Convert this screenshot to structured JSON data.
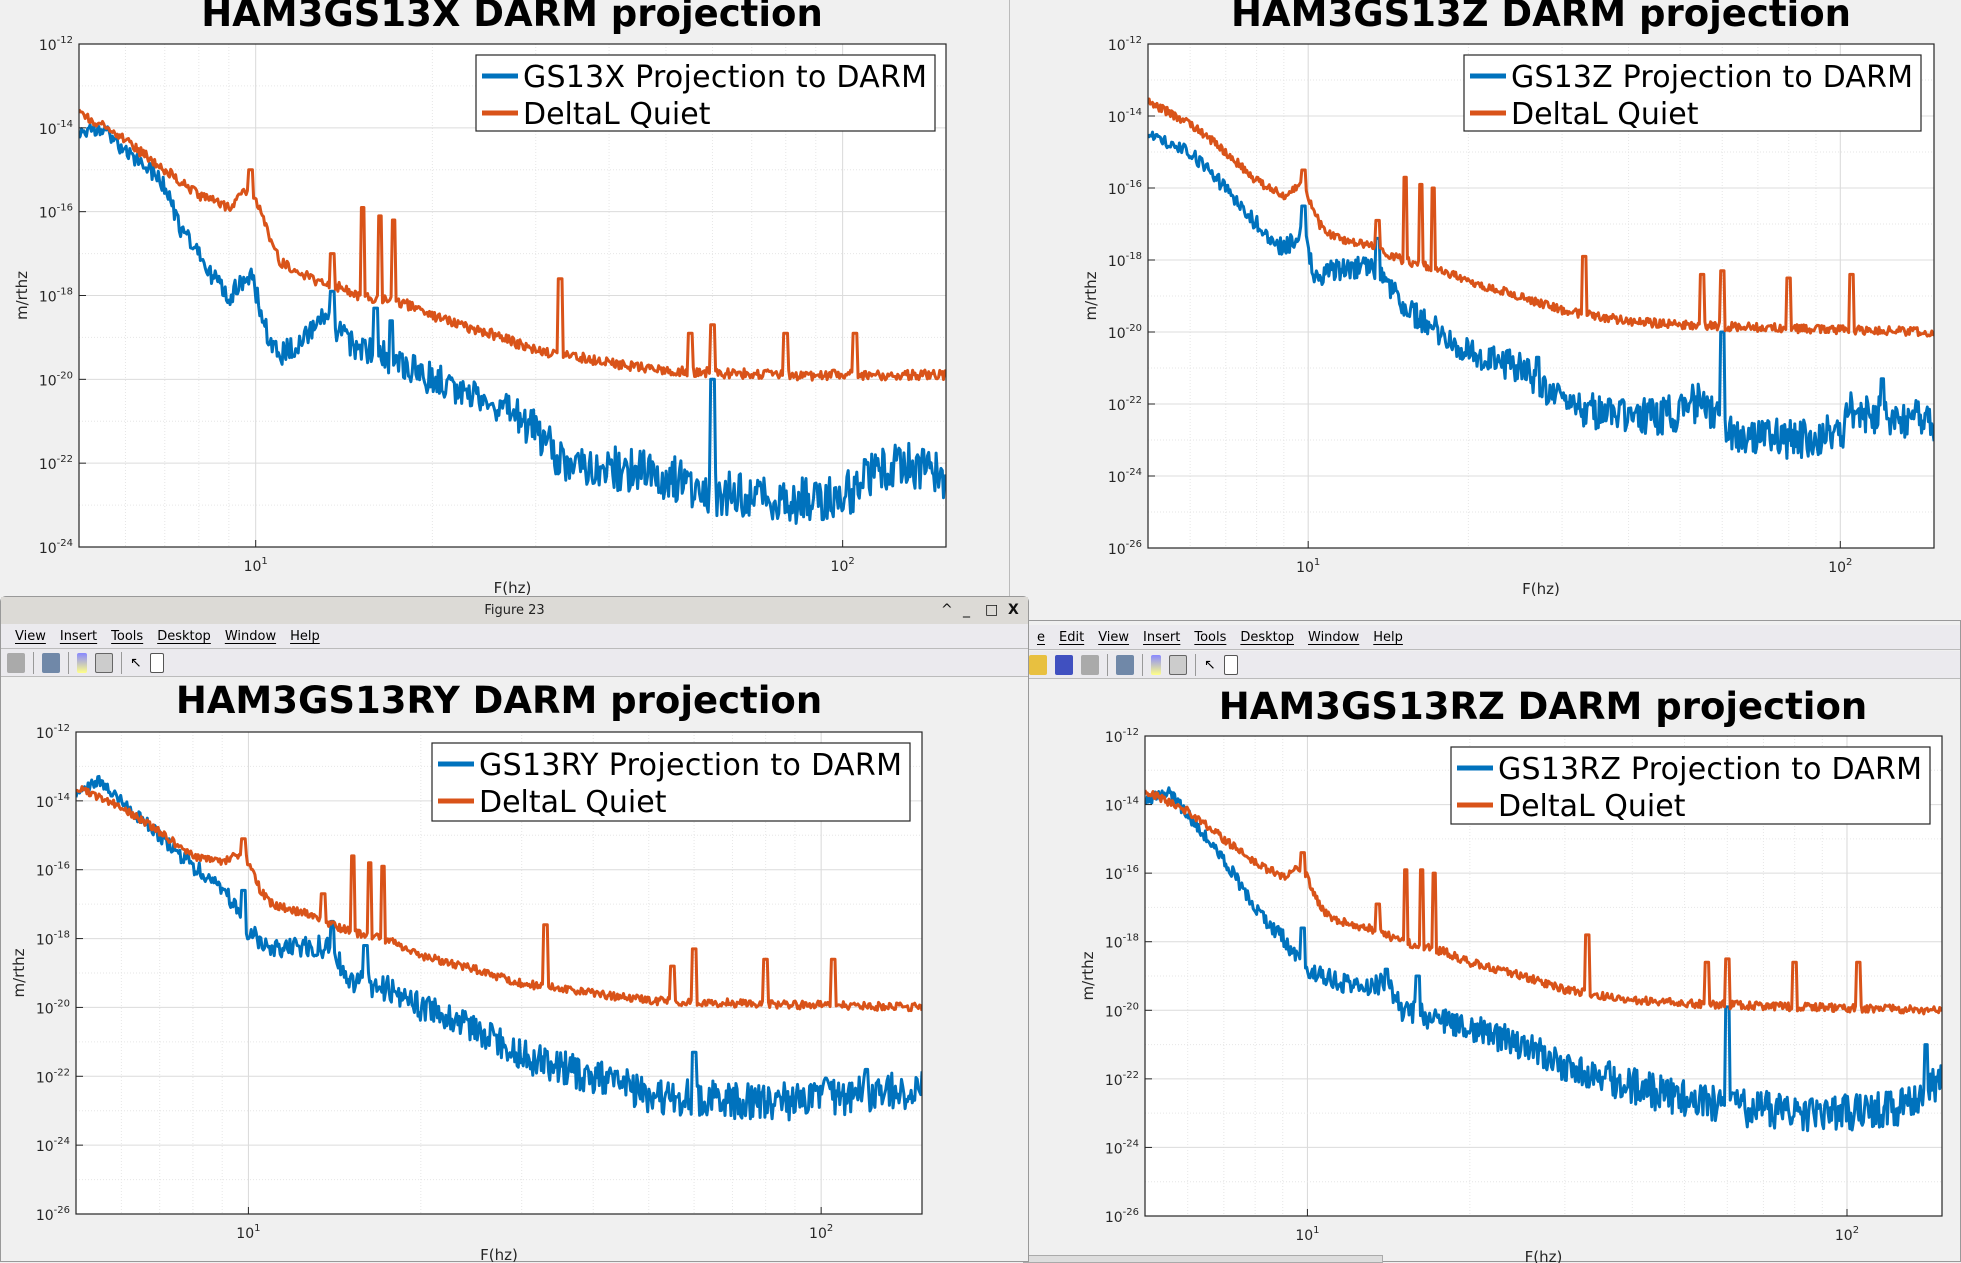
{
  "windows": {
    "fig23": {
      "title": "Figure 23",
      "menu": [
        "View",
        "Insert",
        "Tools",
        "Desktop",
        "Window",
        "Help"
      ],
      "controls": [
        "^",
        "_",
        "□",
        "X"
      ]
    },
    "right": {
      "menu": [
        "e",
        "Edit",
        "View",
        "Insert",
        "Tools",
        "Desktop",
        "Window",
        "Help"
      ]
    }
  },
  "icons": [
    "print-icon",
    "link-icon",
    "colorbar-icon",
    "legend-icon",
    "pointer-icon",
    "property-editor-icon",
    "open-icon",
    "save-icon"
  ],
  "colors": {
    "blue": "#0072bd",
    "orange": "#d95319"
  },
  "chart_data": [
    {
      "type": "line",
      "title": "HAM3GS13X DARM projection",
      "xlabel": "F(hz)",
      "ylabel": "m/rthz",
      "xscale": "log",
      "yscale": "log",
      "xlim": [
        5,
        150
      ],
      "ylim_exp": [
        -24,
        -12
      ],
      "yticks": [
        "10^-12",
        "10^-14",
        "10^-16",
        "10^-18",
        "10^-20",
        "10^-22",
        "10^-24"
      ],
      "xticks": [
        "10^1",
        "10^2"
      ],
      "grid": true,
      "legend_position": "top-right",
      "series": [
        {
          "name": "GS13X Projection to DARM",
          "color": "#0072bd",
          "log10_points": [
            [
              5,
              -14.1
            ],
            [
              5.5,
              -14.0
            ],
            [
              6,
              -14.6
            ],
            [
              6.5,
              -14.9
            ],
            [
              7,
              -15.4
            ],
            [
              7.5,
              -16.5
            ],
            [
              8,
              -17.0
            ],
            [
              8.5,
              -17.6
            ],
            [
              9,
              -18.0
            ],
            [
              9.8,
              -17.5
            ],
            [
              10.5,
              -19.0
            ],
            [
              11,
              -19.4
            ],
            [
              12,
              -19.1
            ],
            [
              13,
              -18.6
            ],
            [
              14,
              -18.9
            ],
            [
              15,
              -19.3
            ],
            [
              17,
              -19.5
            ],
            [
              20,
              -20.0
            ],
            [
              25,
              -20.5
            ],
            [
              30,
              -21.2
            ],
            [
              33,
              -21.9
            ],
            [
              40,
              -22.1
            ],
            [
              50,
              -22.3
            ],
            [
              60,
              -22.7
            ],
            [
              80,
              -22.9
            ],
            [
              100,
              -22.8
            ],
            [
              125,
              -21.9
            ],
            [
              150,
              -22.4
            ]
          ],
          "spikes": [
            [
              13.5,
              -17.9
            ],
            [
              16,
              -18.3
            ],
            [
              17,
              -18.6
            ],
            [
              60,
              -20.0
            ]
          ]
        },
        {
          "name": "DeltaL Quiet",
          "color": "#d95319",
          "log10_points": [
            [
              5,
              -13.6
            ],
            [
              6,
              -14.3
            ],
            [
              7,
              -15.0
            ],
            [
              8,
              -15.6
            ],
            [
              9,
              -15.9
            ],
            [
              9.8,
              -15.4
            ],
            [
              10.5,
              -16.5
            ],
            [
              11,
              -17.2
            ],
            [
              12,
              -17.5
            ],
            [
              13,
              -17.7
            ],
            [
              14,
              -17.8
            ],
            [
              15,
              -18.0
            ],
            [
              18,
              -18.2
            ],
            [
              20,
              -18.5
            ],
            [
              25,
              -18.9
            ],
            [
              30,
              -19.3
            ],
            [
              40,
              -19.6
            ],
            [
              50,
              -19.8
            ],
            [
              80,
              -19.9
            ],
            [
              150,
              -19.9
            ]
          ],
          "spikes": [
            [
              9.8,
              -15.0
            ],
            [
              13.5,
              -17.0
            ],
            [
              15.2,
              -15.9
            ],
            [
              16.3,
              -16.1
            ],
            [
              17.2,
              -16.2
            ],
            [
              33,
              -17.6
            ],
            [
              55,
              -18.9
            ],
            [
              60,
              -18.7
            ],
            [
              80,
              -18.9
            ],
            [
              105,
              -18.9
            ]
          ]
        }
      ]
    },
    {
      "type": "line",
      "title": "HAM3GS13Z DARM projection",
      "xlabel": "F(hz)",
      "ylabel": "m/rthz",
      "xscale": "log",
      "yscale": "log",
      "xlim": [
        5,
        150
      ],
      "ylim_exp": [
        -26,
        -12
      ],
      "yticks": [
        "10^-12",
        "10^-14",
        "10^-16",
        "10^-18",
        "10^-20",
        "10^-22",
        "10^-24",
        "10^-26"
      ],
      "xticks": [
        "10^1",
        "10^2"
      ],
      "grid": true,
      "legend_position": "top-right",
      "series": [
        {
          "name": "GS13Z Projection to DARM",
          "color": "#0072bd",
          "log10_points": [
            [
              5,
              -14.5
            ],
            [
              6,
              -15.0
            ],
            [
              7,
              -16.0
            ],
            [
              8,
              -17.0
            ],
            [
              9,
              -17.7
            ],
            [
              9.8,
              -17.2
            ],
            [
              10.3,
              -18.6
            ],
            [
              11,
              -18.3
            ],
            [
              13,
              -18.2
            ],
            [
              14,
              -18.5
            ],
            [
              15,
              -19.3
            ],
            [
              17,
              -19.8
            ],
            [
              20,
              -20.6
            ],
            [
              25,
              -21.0
            ],
            [
              30,
              -22.0
            ],
            [
              40,
              -22.4
            ],
            [
              50,
              -22.3
            ],
            [
              55,
              -21.8
            ],
            [
              60,
              -22.7
            ],
            [
              80,
              -23.0
            ],
            [
              100,
              -22.8
            ],
            [
              105,
              -22.2
            ],
            [
              150,
              -22.5
            ]
          ],
          "spikes": [
            [
              9.8,
              -16.5
            ],
            [
              13.5,
              -17.4
            ],
            [
              27,
              -20.7
            ],
            [
              60,
              -20.0
            ],
            [
              120,
              -21.3
            ]
          ]
        },
        {
          "name": "DeltaL Quiet",
          "color": "#d95319",
          "log10_points": [
            [
              5,
              -13.6
            ],
            [
              6,
              -14.2
            ],
            [
              7,
              -15.0
            ],
            [
              8,
              -15.8
            ],
            [
              9,
              -16.2
            ],
            [
              9.8,
              -15.9
            ],
            [
              10.5,
              -17.0
            ],
            [
              11,
              -17.3
            ],
            [
              12,
              -17.5
            ],
            [
              13,
              -17.6
            ],
            [
              14,
              -17.8
            ],
            [
              15,
              -18.0
            ],
            [
              18,
              -18.3
            ],
            [
              20,
              -18.6
            ],
            [
              25,
              -19.0
            ],
            [
              30,
              -19.4
            ],
            [
              40,
              -19.7
            ],
            [
              50,
              -19.8
            ],
            [
              80,
              -19.9
            ],
            [
              150,
              -20.0
            ]
          ],
          "spikes": [
            [
              9.8,
              -15.5
            ],
            [
              13.5,
              -16.9
            ],
            [
              15.2,
              -15.7
            ],
            [
              16.3,
              -15.9
            ],
            [
              17.2,
              -16.0
            ],
            [
              33,
              -17.9
            ],
            [
              55,
              -18.4
            ],
            [
              60,
              -18.3
            ],
            [
              80,
              -18.5
            ],
            [
              105,
              -18.4
            ]
          ]
        }
      ]
    },
    {
      "type": "line",
      "title": "HAM3GS13RY DARM projection",
      "xlabel": "F(hz)",
      "ylabel": "m/rthz",
      "xscale": "log",
      "yscale": "log",
      "xlim": [
        5,
        150
      ],
      "ylim_exp": [
        -26,
        -12
      ],
      "yticks": [
        "10^-12",
        "10^-14",
        "10^-16",
        "10^-18",
        "10^-20",
        "10^-22",
        "10^-24",
        "10^-26"
      ],
      "xticks": [
        "10^1",
        "10^2"
      ],
      "grid": true,
      "legend_position": "top-right",
      "series": [
        {
          "name": "GS13RY Projection to DARM",
          "color": "#0072bd",
          "log10_points": [
            [
              5,
              -13.8
            ],
            [
              5.5,
              -13.4
            ],
            [
              6,
              -14.0
            ],
            [
              7,
              -15.0
            ],
            [
              8,
              -15.9
            ],
            [
              9,
              -16.5
            ],
            [
              10,
              -17.8
            ],
            [
              11,
              -18.3
            ],
            [
              13,
              -18.2
            ],
            [
              14,
              -18.3
            ],
            [
              15,
              -19.2
            ],
            [
              18,
              -19.5
            ],
            [
              20,
              -20.0
            ],
            [
              25,
              -20.6
            ],
            [
              30,
              -21.4
            ],
            [
              40,
              -22.0
            ],
            [
              50,
              -22.5
            ],
            [
              80,
              -22.8
            ],
            [
              100,
              -22.6
            ],
            [
              150,
              -22.4
            ]
          ],
          "spikes": [
            [
              9.8,
              -16.6
            ],
            [
              14,
              -17.5
            ],
            [
              16,
              -18.2
            ],
            [
              27,
              -20.8
            ],
            [
              60,
              -21.3
            ],
            [
              120,
              -21.8
            ]
          ]
        },
        {
          "name": "DeltaL Quiet",
          "color": "#d95319",
          "log10_points": [
            [
              5,
              -13.6
            ],
            [
              6,
              -14.2
            ],
            [
              7,
              -14.9
            ],
            [
              8,
              -15.6
            ],
            [
              9,
              -15.8
            ],
            [
              9.8,
              -15.5
            ],
            [
              10.5,
              -16.6
            ],
            [
              11,
              -17.0
            ],
            [
              12,
              -17.2
            ],
            [
              13,
              -17.3
            ],
            [
              14,
              -17.6
            ],
            [
              15,
              -17.8
            ],
            [
              18,
              -18.1
            ],
            [
              20,
              -18.5
            ],
            [
              25,
              -18.9
            ],
            [
              30,
              -19.3
            ],
            [
              40,
              -19.6
            ],
            [
              50,
              -19.8
            ],
            [
              80,
              -19.9
            ],
            [
              150,
              -20.0
            ]
          ],
          "spikes": [
            [
              9.8,
              -15.1
            ],
            [
              13.5,
              -16.7
            ],
            [
              15.2,
              -15.6
            ],
            [
              16.3,
              -15.8
            ],
            [
              17.2,
              -15.9
            ],
            [
              33,
              -17.6
            ],
            [
              55,
              -18.8
            ],
            [
              60,
              -18.3
            ],
            [
              80,
              -18.6
            ],
            [
              105,
              -18.6
            ]
          ]
        }
      ]
    },
    {
      "type": "line",
      "title": "HAM3GS13RZ DARM projection",
      "xlabel": "F(hz)",
      "ylabel": "m/rthz",
      "xscale": "log",
      "yscale": "log",
      "xlim": [
        5,
        150
      ],
      "ylim_exp": [
        -26,
        -12
      ],
      "yticks": [
        "10^-12",
        "10^-14",
        "10^-16",
        "10^-18",
        "10^-20",
        "10^-22",
        "10^-24",
        "10^-26"
      ],
      "xticks": [
        "10^1",
        "10^2"
      ],
      "grid": true,
      "legend_position": "top-right",
      "series": [
        {
          "name": "GS13RZ Projection to DARM",
          "color": "#0072bd",
          "log10_points": [
            [
              5,
              -13.9
            ],
            [
              5.5,
              -13.6
            ],
            [
              6,
              -14.3
            ],
            [
              7,
              -15.6
            ],
            [
              8,
              -17.0
            ],
            [
              9,
              -17.9
            ],
            [
              10,
              -18.8
            ],
            [
              12,
              -19.3
            ],
            [
              14,
              -19.2
            ],
            [
              15,
              -20.0
            ],
            [
              20,
              -20.5
            ],
            [
              25,
              -21.0
            ],
            [
              30,
              -21.6
            ],
            [
              40,
              -22.2
            ],
            [
              50,
              -22.6
            ],
            [
              60,
              -22.8
            ],
            [
              80,
              -23.0
            ],
            [
              100,
              -23.0
            ],
            [
              130,
              -22.8
            ],
            [
              150,
              -22.0
            ]
          ],
          "spikes": [
            [
              9.8,
              -17.6
            ],
            [
              14,
              -18.8
            ],
            [
              16,
              -19.0
            ],
            [
              60,
              -19.9
            ],
            [
              140,
              -21.0
            ]
          ]
        },
        {
          "name": "DeltaL Quiet",
          "color": "#d95319",
          "log10_points": [
            [
              5,
              -13.6
            ],
            [
              6,
              -14.2
            ],
            [
              7,
              -15.0
            ],
            [
              8,
              -15.7
            ],
            [
              9,
              -16.1
            ],
            [
              9.8,
              -15.8
            ],
            [
              10.5,
              -16.9
            ],
            [
              11,
              -17.3
            ],
            [
              12,
              -17.5
            ],
            [
              13,
              -17.6
            ],
            [
              14,
              -17.8
            ],
            [
              15,
              -18.0
            ],
            [
              18,
              -18.3
            ],
            [
              20,
              -18.6
            ],
            [
              25,
              -19.0
            ],
            [
              30,
              -19.4
            ],
            [
              40,
              -19.7
            ],
            [
              50,
              -19.8
            ],
            [
              80,
              -19.9
            ],
            [
              150,
              -20.0
            ]
          ],
          "spikes": [
            [
              9.8,
              -15.4
            ],
            [
              13.5,
              -16.9
            ],
            [
              15.2,
              -15.9
            ],
            [
              16.3,
              -15.9
            ],
            [
              17.2,
              -16.0
            ],
            [
              33,
              -17.8
            ],
            [
              55,
              -18.6
            ],
            [
              60,
              -18.5
            ],
            [
              80,
              -18.6
            ],
            [
              105,
              -18.6
            ]
          ]
        }
      ]
    }
  ]
}
